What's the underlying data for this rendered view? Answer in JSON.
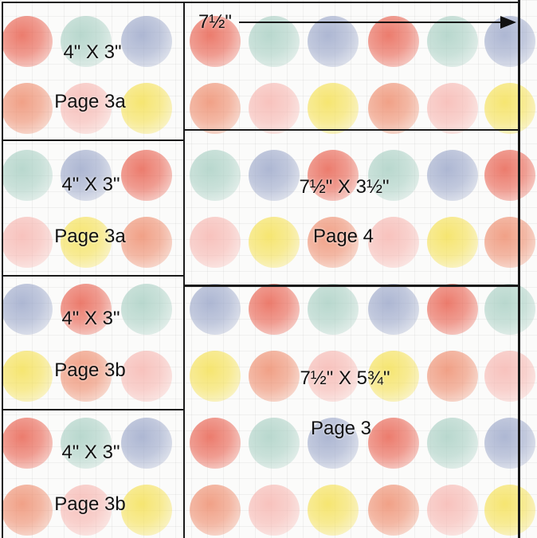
{
  "diagram": {
    "pieces": [
      {
        "size": "4\" X 3\"",
        "page": "Page 3a"
      },
      {
        "size": "4\" X 3\"",
        "page": "Page 3a"
      },
      {
        "size": "4\" X 3\"",
        "page": "Page 3b"
      },
      {
        "size": "4\" X 3\"",
        "page": "Page 3b"
      },
      {
        "size": "7½\" X 3½\"",
        "page": "Page 4"
      },
      {
        "size": "7½\" X 5¾\"",
        "page": "Page 3"
      }
    ],
    "width_label": "7½\"",
    "dot_colors": [
      "#e85c4a",
      "#f2a35b",
      "#f5e04f",
      "#2a9d8f",
      "#9aa6c9",
      "#bcd9c0",
      "#f7b4ae",
      "#d9383f",
      "#a8cfc3",
      "#f6c7c2",
      "#ee8a6a",
      "#c9ced8"
    ]
  }
}
